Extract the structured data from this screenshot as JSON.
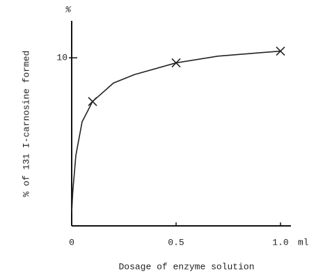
{
  "chart_data": {
    "type": "line",
    "x_label": "Dosage of enzyme solution",
    "y_label": "% of 131 I-carnosine formed",
    "x_unit": "ml",
    "y_unit": "%",
    "xlim": [
      0,
      1.05
    ],
    "ylim": [
      0,
      12.2
    ],
    "xticks": [
      0,
      0.5,
      {
        "value": 1,
        "label": "1.0"
      }
    ],
    "yticks": [
      10
    ],
    "series": [
      {
        "color": "#222",
        "x": [
          0,
          0.005,
          0.02,
          0.05,
          0.1,
          0.2,
          0.3,
          0.5,
          0.7,
          1.0
        ],
        "values": [
          0.8,
          2,
          4.2,
          6.2,
          7.4,
          8.5,
          9.0,
          9.7,
          10.1,
          10.4
        ],
        "marker": "none"
      },
      {
        "color": "#222",
        "x": [
          0.1,
          0.5,
          1.0
        ],
        "values": [
          7.4,
          9.7,
          10.4
        ],
        "marker": "x"
      }
    ]
  }
}
